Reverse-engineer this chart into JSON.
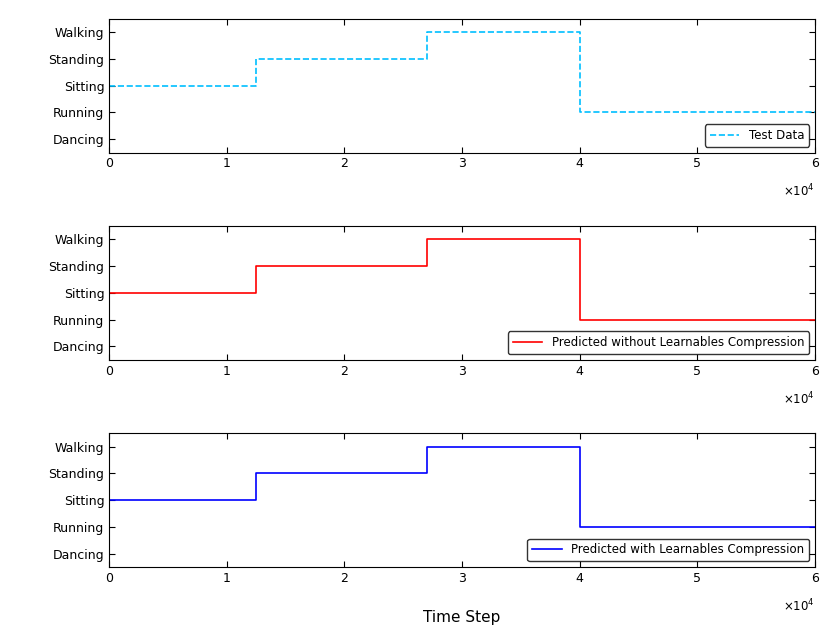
{
  "xlim": [
    0,
    60000
  ],
  "xticks": [
    0,
    10000,
    20000,
    30000,
    40000,
    50000,
    60000
  ],
  "xtick_labels": [
    "0",
    "1",
    "2",
    "3",
    "4",
    "5",
    "6"
  ],
  "ytick_positions": [
    1,
    2,
    3,
    4,
    5
  ],
  "ytick_labels": [
    "Dancing",
    "Running",
    "Sitting",
    "Standing",
    "Walking"
  ],
  "ylim": [
    0.5,
    5.5
  ],
  "plot1": {
    "x": [
      0,
      12500,
      12500,
      27000,
      27000,
      40000,
      40000,
      60000
    ],
    "y": [
      3,
      3,
      4,
      4,
      5,
      5,
      2,
      2
    ],
    "color": "#00BFFF",
    "linestyle": "--",
    "linewidth": 1.2,
    "label": "Test Data"
  },
  "plot2": {
    "x": [
      0,
      12500,
      12500,
      27000,
      27000,
      40000,
      40000,
      60000
    ],
    "y": [
      3,
      3,
      4,
      4,
      5,
      5,
      2,
      2
    ],
    "color": "#FF0000",
    "linestyle": "-",
    "linewidth": 1.2,
    "label": "Predicted without Learnables Compression"
  },
  "plot3": {
    "x": [
      0,
      12500,
      12500,
      27000,
      27000,
      40000,
      40000,
      60000
    ],
    "y": [
      3,
      3,
      4,
      4,
      5,
      5,
      2,
      2
    ],
    "color": "#0000FF",
    "linestyle": "-",
    "linewidth": 1.2,
    "label": "Predicted with Learnables Compression"
  },
  "xlabel": "Time Step",
  "fig_width": 8.4,
  "fig_height": 6.3,
  "background_color": "#ffffff"
}
